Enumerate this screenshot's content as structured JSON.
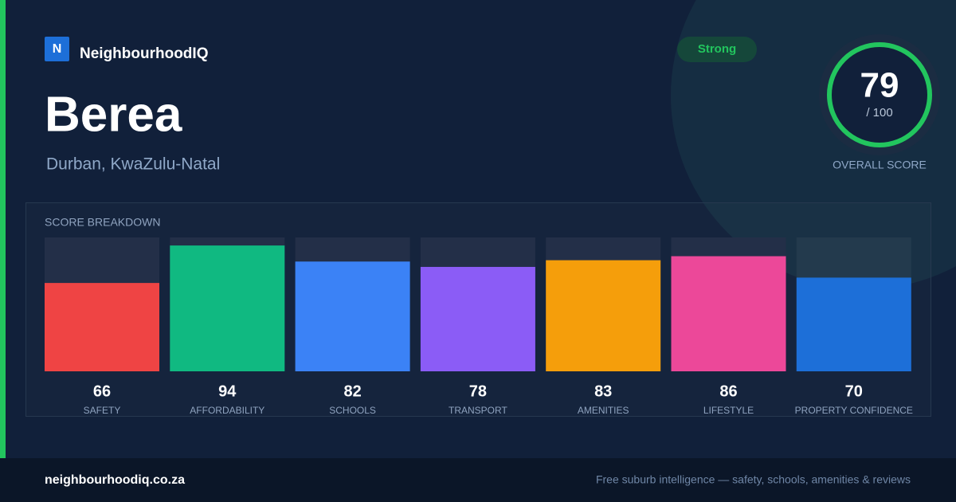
{
  "header": {
    "logo_letter": "N",
    "brand": "NeighbourhoodIQ",
    "title": "Berea",
    "subtitle": "Durban, KwaZulu-Natal",
    "badge": "Strong"
  },
  "score": {
    "value": 79,
    "out_of": "/ 100",
    "caption": "OVERALL SCORE"
  },
  "chart_data": {
    "type": "bar",
    "title": "SCORE BREAKDOWN",
    "categories": [
      "SAFETY",
      "AFFORDABILITY",
      "SCHOOLS",
      "TRANSPORT",
      "AMENITIES",
      "LIFESTYLE",
      "PROPERTY CONFIDENCE"
    ],
    "values": [
      66,
      94,
      82,
      78,
      83,
      86,
      70
    ],
    "colors": [
      "#ef4444",
      "#10b981",
      "#3b82f6",
      "#8b5cf6",
      "#f59e0b",
      "#ec4899",
      "#1d6fd8"
    ],
    "ylim": [
      0,
      100
    ]
  },
  "footer": {
    "domain": "neighbourhoodiq.co.za",
    "tagline": "Free suburb intelligence — safety, schools, amenities & reviews"
  }
}
